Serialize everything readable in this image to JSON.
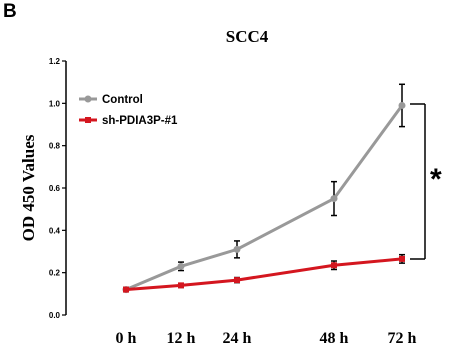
{
  "panel_letter": "B",
  "chart_data": {
    "type": "line",
    "title": "SCC4",
    "ylabel": "OD 450 Values",
    "xlabel": "",
    "categories": [
      "0 h",
      "12 h",
      "24 h",
      "48 h",
      "72 h"
    ],
    "ylim": [
      0.0,
      1.2
    ],
    "yticks": [
      "0.0",
      "0.2",
      "0.4",
      "0.6",
      "0.8",
      "1.0",
      "1.2"
    ],
    "grid": false,
    "legend_position": "top-left",
    "series": [
      {
        "name": "Control",
        "color": "#999999",
        "marker": "circle",
        "values": [
          0.12,
          0.23,
          0.31,
          0.55,
          0.99
        ],
        "errors": [
          0.01,
          0.02,
          0.04,
          0.08,
          0.1
        ]
      },
      {
        "name": "sh-PDIA3P-#1",
        "color": "#d4161f",
        "marker": "square",
        "values": [
          0.12,
          0.14,
          0.165,
          0.235,
          0.265
        ],
        "errors": [
          0.01,
          0.01,
          0.012,
          0.02,
          0.02
        ]
      }
    ],
    "annotation": {
      "text": "*",
      "between": [
        "Control",
        "sh-PDIA3P-#1"
      ],
      "at": "72 h"
    }
  }
}
